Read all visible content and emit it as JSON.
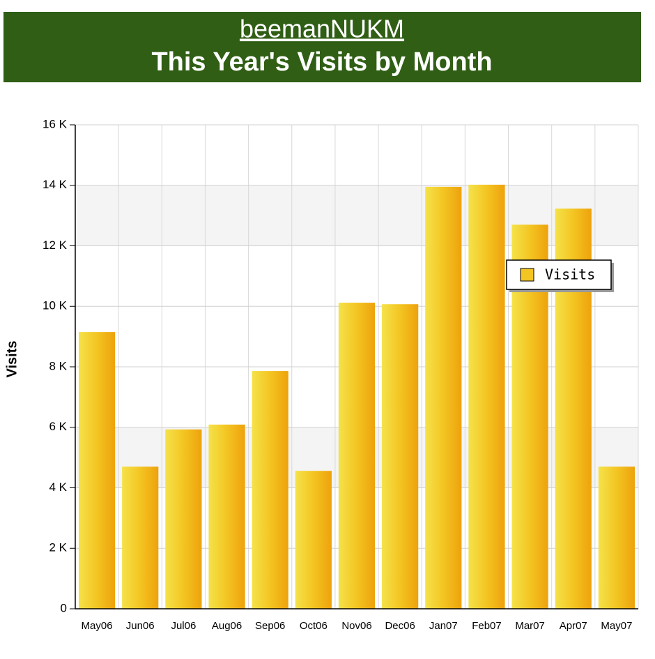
{
  "chart_data": {
    "type": "bar",
    "title": "beemanNUKM",
    "subtitle": "This Year's Visits by Month",
    "y_label": "Visits",
    "categories": [
      "May06",
      "Jun06",
      "Jul06",
      "Aug06",
      "Sep06",
      "Oct06",
      "Nov06",
      "Dec06",
      "Jan07",
      "Feb07",
      "Mar07",
      "Apr07",
      "May07"
    ],
    "series": [
      {
        "name": "Visits",
        "color": "#f3c522",
        "values": [
          9150,
          4700,
          5930,
          6090,
          7860,
          4560,
          10120,
          10070,
          13950,
          14020,
          12700,
          13230,
          4700
        ]
      }
    ],
    "ylim": [
      0,
      16000
    ],
    "yticks": [
      {
        "value": 0,
        "label": "0"
      },
      {
        "value": 2000,
        "label": "2 K"
      },
      {
        "value": 4000,
        "label": "4 K"
      },
      {
        "value": 6000,
        "label": "6 K"
      },
      {
        "value": 8000,
        "label": "8 K"
      },
      {
        "value": 10000,
        "label": "10 K"
      },
      {
        "value": 12000,
        "label": "12 K"
      },
      {
        "value": 14000,
        "label": "14 K"
      },
      {
        "value": 16000,
        "label": "16 K"
      }
    ],
    "grid": true
  }
}
